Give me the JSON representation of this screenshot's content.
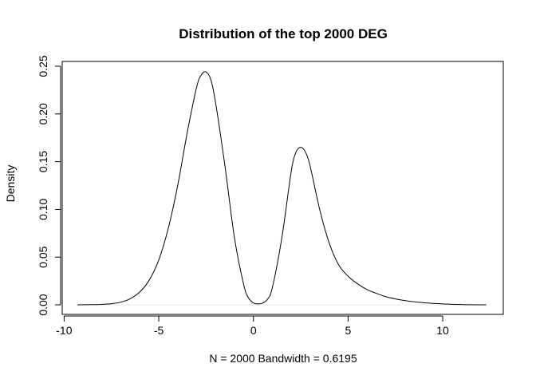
{
  "chart_data": {
    "type": "line",
    "title": "Distribution of the top 2000 DEG",
    "xlabel": "N = 2000   Bandwidth = 0.6195",
    "ylabel": "Density",
    "xlim": [
      -10.1,
      13.2
    ],
    "ylim": [
      -0.01,
      0.255
    ],
    "x_ticks": [
      -10,
      -5,
      0,
      5,
      10
    ],
    "x_tick_labels": [
      "-10",
      "-5",
      "0",
      "5",
      "10"
    ],
    "y_ticks": [
      0.0,
      0.05,
      0.1,
      0.15,
      0.2,
      0.25
    ],
    "y_tick_labels": [
      "0.00",
      "0.05",
      "0.10",
      "0.15",
      "0.20",
      "0.25"
    ],
    "grid": false,
    "series": [
      {
        "color": "#000000",
        "x": [
          -9.3,
          -8.5,
          -8.0,
          -7.5,
          -7.0,
          -6.5,
          -6.0,
          -5.5,
          -5.0,
          -4.5,
          -4.0,
          -3.5,
          -3.0,
          -2.75,
          -2.5,
          -2.25,
          -2.0,
          -1.5,
          -1.0,
          -0.5,
          -0.25,
          0.0,
          0.25,
          0.5,
          0.75,
          1.0,
          1.5,
          2.0,
          2.25,
          2.5,
          2.75,
          3.0,
          3.5,
          4.0,
          4.5,
          5.0,
          5.5,
          6.0,
          6.5,
          7.0,
          7.5,
          8.0,
          8.5,
          9.0,
          9.5,
          10.0,
          10.5,
          11.0,
          11.5,
          12.3
        ],
        "y": [
          0.0,
          0.0002,
          0.0005,
          0.0012,
          0.0028,
          0.0065,
          0.0135,
          0.026,
          0.047,
          0.08,
          0.125,
          0.18,
          0.228,
          0.241,
          0.244,
          0.236,
          0.212,
          0.145,
          0.07,
          0.02,
          0.007,
          0.002,
          0.001,
          0.002,
          0.006,
          0.018,
          0.07,
          0.14,
          0.16,
          0.165,
          0.16,
          0.145,
          0.1,
          0.065,
          0.042,
          0.03,
          0.022,
          0.016,
          0.012,
          0.0085,
          0.0062,
          0.0045,
          0.0032,
          0.0022,
          0.0015,
          0.001,
          0.0006,
          0.0003,
          0.0001,
          0.0
        ]
      }
    ],
    "reference_line": {
      "y": 0,
      "color": "#e6e6e6"
    }
  }
}
